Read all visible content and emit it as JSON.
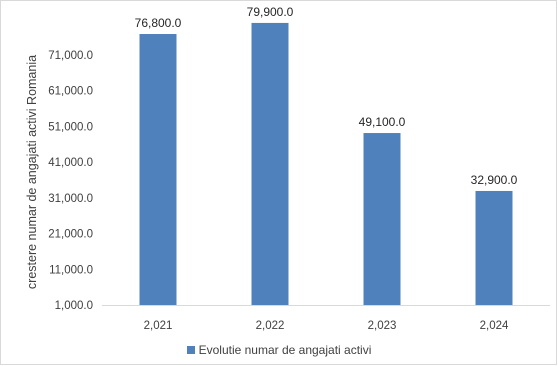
{
  "chart_data": {
    "type": "bar",
    "categories": [
      "2,021",
      "2,022",
      "2,023",
      "2,024"
    ],
    "series": [
      {
        "name": "Evolutie numar de angajati activi",
        "values": [
          76800,
          79900,
          49100,
          32900
        ],
        "labels": [
          "76,800.0",
          "79,900.0",
          "49,100.0",
          "32,900.0"
        ],
        "color": "#4f81bd"
      }
    ],
    "title": "",
    "xlabel": "",
    "ylabel": "crestere numar de angajati activi Romania",
    "ylim": [
      1000,
      81000
    ],
    "yticks": [
      1000,
      11000,
      21000,
      31000,
      41000,
      51000,
      61000,
      71000
    ],
    "ytick_labels": [
      "1,000.0",
      "11,000.0",
      "21,000.0",
      "31,000.0",
      "41,000.0",
      "51,000.0",
      "61,000.0",
      "71,000.0"
    ],
    "grid": false,
    "legend_position": "bottom"
  }
}
